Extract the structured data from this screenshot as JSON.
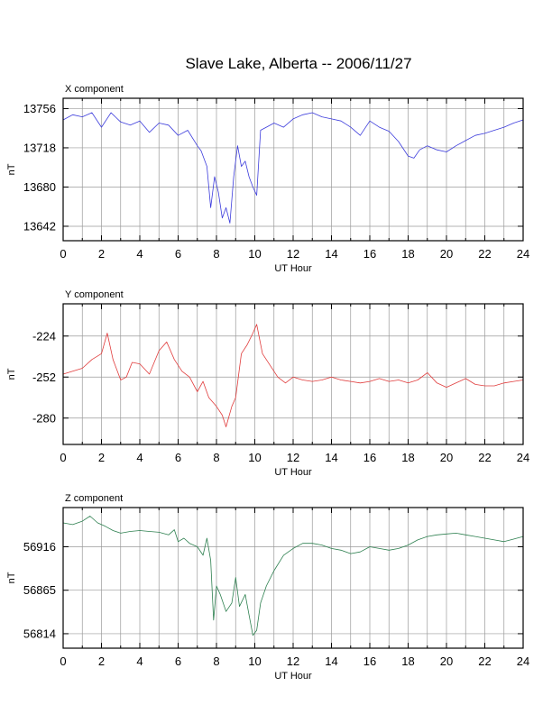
{
  "title": "Slave Lake, Alberta -- 2006/11/27",
  "chart_data": [
    {
      "type": "line",
      "title": "X component",
      "xlabel": "UT Hour",
      "ylabel": "nT",
      "xlim": [
        0,
        24
      ],
      "ylim": [
        13628,
        13766
      ],
      "xticks": [
        0,
        2,
        4,
        6,
        8,
        10,
        12,
        14,
        16,
        18,
        20,
        22,
        24
      ],
      "yticks": [
        13756,
        13718,
        13680,
        13642
      ],
      "grid": true,
      "color": "#3c3cdc",
      "x": [
        0,
        0.5,
        1,
        1.5,
        2,
        2.5,
        3,
        3.5,
        4,
        4.5,
        5,
        5.5,
        6,
        6.5,
        7,
        7.2,
        7.5,
        7.7,
        7.9,
        8.1,
        8.3,
        8.5,
        8.7,
        8.9,
        9.1,
        9.3,
        9.5,
        9.7,
        9.9,
        10.1,
        10.3,
        10.6,
        11,
        11.5,
        12,
        12.5,
        13,
        13.5,
        14,
        14.5,
        15,
        15.5,
        16,
        16.5,
        17,
        17.5,
        18,
        18.3,
        18.6,
        19,
        19.5,
        20,
        20.5,
        21,
        21.5,
        22,
        22.5,
        23,
        23.5,
        24
      ],
      "y": [
        13745,
        13750,
        13748,
        13752,
        13738,
        13752,
        13743,
        13740,
        13744,
        13733,
        13742,
        13740,
        13730,
        13735,
        13720,
        13715,
        13700,
        13660,
        13690,
        13675,
        13650,
        13660,
        13645,
        13690,
        13720,
        13700,
        13705,
        13690,
        13680,
        13672,
        13735,
        13738,
        13742,
        13738,
        13746,
        13750,
        13752,
        13748,
        13746,
        13744,
        13738,
        13730,
        13744,
        13738,
        13734,
        13724,
        13710,
        13708,
        13716,
        13720,
        13716,
        13714,
        13720,
        13725,
        13730,
        13732,
        13735,
        13738,
        13742,
        13745
      ]
    },
    {
      "type": "line",
      "title": "Y component",
      "xlabel": "UT Hour",
      "ylabel": "nT",
      "xlim": [
        0,
        24
      ],
      "ylim": [
        -298,
        -202
      ],
      "xticks": [
        0,
        2,
        4,
        6,
        8,
        10,
        12,
        14,
        16,
        18,
        20,
        22,
        24
      ],
      "yticks": [
        -224,
        -252,
        -280
      ],
      "grid": true,
      "color": "#e03c3c",
      "x": [
        0,
        0.5,
        1,
        1.5,
        2,
        2.3,
        2.6,
        3,
        3.3,
        3.6,
        4,
        4.5,
        5,
        5.4,
        5.8,
        6.2,
        6.6,
        7,
        7.3,
        7.6,
        8,
        8.3,
        8.5,
        8.8,
        9,
        9.3,
        9.6,
        9.9,
        10.1,
        10.4,
        10.8,
        11.2,
        11.6,
        12,
        12.5,
        13,
        13.5,
        14,
        14.5,
        15,
        15.5,
        16,
        16.5,
        17,
        17.5,
        18,
        18.5,
        19,
        19.5,
        20,
        20.5,
        21,
        21.5,
        22,
        22.5,
        23,
        23.5,
        24
      ],
      "y": [
        -250,
        -248,
        -246,
        -240,
        -236,
        -222,
        -240,
        -254,
        -252,
        -242,
        -243,
        -250,
        -234,
        -228,
        -240,
        -248,
        -252,
        -262,
        -255,
        -266,
        -272,
        -278,
        -286,
        -272,
        -266,
        -236,
        -230,
        -222,
        -216,
        -236,
        -244,
        -252,
        -256,
        -252,
        -254,
        -255,
        -254,
        -252,
        -254,
        -255,
        -256,
        -255,
        -253,
        -255,
        -254,
        -256,
        -254,
        -249,
        -256,
        -259,
        -256,
        -253,
        -257,
        -258,
        -258,
        -256,
        -255,
        -254
      ]
    },
    {
      "type": "line",
      "title": "Z component",
      "xlabel": "UT Hour",
      "ylabel": "nT",
      "xlim": [
        0,
        24
      ],
      "ylim": [
        56797,
        56962
      ],
      "xticks": [
        0,
        2,
        4,
        6,
        8,
        10,
        12,
        14,
        16,
        18,
        20,
        22,
        24
      ],
      "yticks": [
        56916,
        56865,
        56814
      ],
      "grid": true,
      "color": "#2e8050",
      "x": [
        0,
        0.5,
        1,
        1.4,
        1.8,
        2.2,
        2.6,
        3,
        3.5,
        4,
        4.5,
        5,
        5.5,
        5.8,
        6,
        6.3,
        6.6,
        7,
        7.3,
        7.5,
        7.7,
        7.85,
        8,
        8.2,
        8.5,
        8.8,
        9,
        9.2,
        9.5,
        9.7,
        9.9,
        10.1,
        10.3,
        10.6,
        11,
        11.5,
        12,
        12.5,
        13,
        13.5,
        14,
        14.5,
        15,
        15.5,
        16,
        16.5,
        17,
        17.5,
        18,
        18.5,
        19,
        19.5,
        20,
        20.5,
        21,
        21.5,
        22,
        22.5,
        23,
        23.5,
        24
      ],
      "y": [
        56944,
        56942,
        56946,
        56952,
        56944,
        56940,
        56935,
        56932,
        56934,
        56935,
        56934,
        56933,
        56930,
        56936,
        56922,
        56926,
        56920,
        56916,
        56906,
        56926,
        56900,
        56830,
        56870,
        56860,
        56840,
        56850,
        56880,
        56846,
        56860,
        56836,
        56812,
        56818,
        56850,
        56870,
        56888,
        56906,
        56914,
        56920,
        56920,
        56918,
        56914,
        56912,
        56908,
        56910,
        56916,
        56914,
        56912,
        56914,
        56918,
        56924,
        56928,
        56930,
        56931,
        56932,
        56930,
        56928,
        56926,
        56924,
        56922,
        56925,
        56928
      ]
    }
  ]
}
